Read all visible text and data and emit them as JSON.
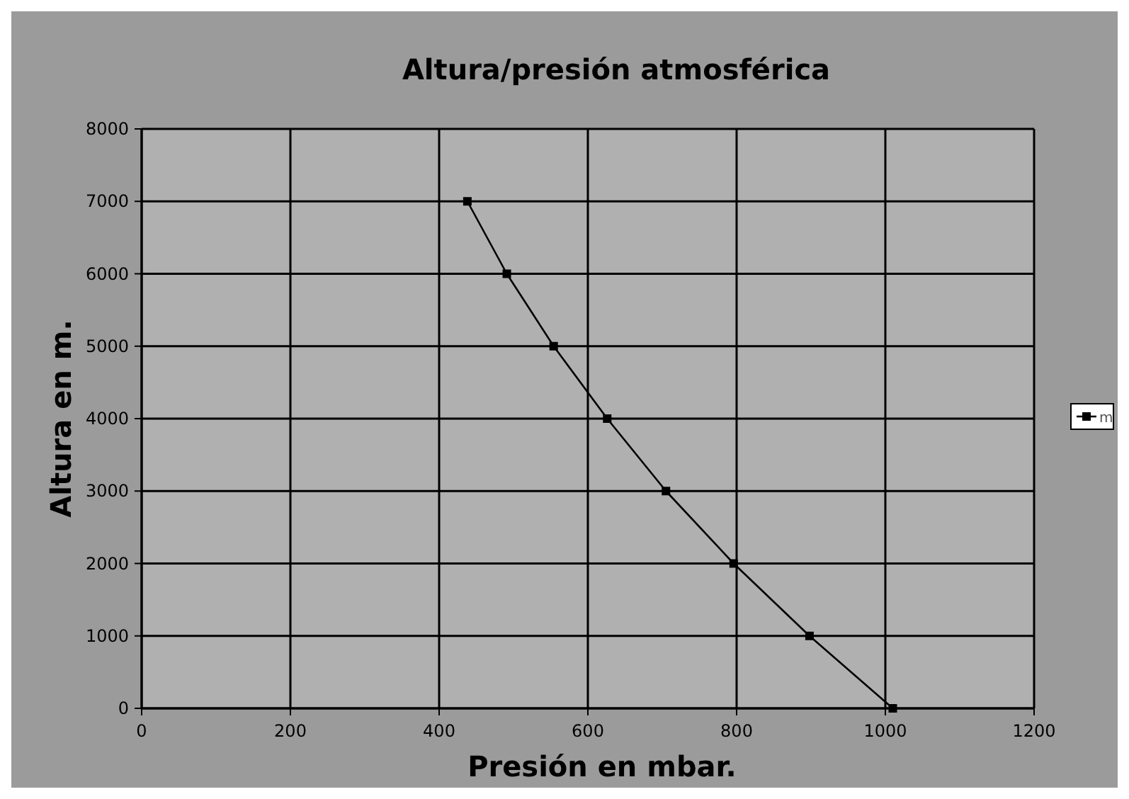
{
  "chart_data": {
    "type": "line",
    "title": "Altura/presión atmosférica",
    "xlabel": "Presión en mbar.",
    "ylabel": "Altura en m.",
    "series": [
      {
        "name": "m",
        "color": "#000000",
        "x": [
          1010,
          898,
          796,
          705,
          626,
          554,
          491,
          438
        ],
        "values": [
          0,
          1000,
          2000,
          3000,
          4000,
          5000,
          6000,
          7000
        ]
      }
    ],
    "xlim": [
      0,
      1200
    ],
    "xticks": [
      0,
      200,
      400,
      600,
      800,
      1000,
      1200
    ],
    "ylim": [
      0,
      8000
    ],
    "yticks": [
      0,
      1000,
      2000,
      3000,
      4000,
      5000,
      6000,
      7000,
      8000
    ],
    "grid": true,
    "legend": "right",
    "marker": "square",
    "line_style": "solid"
  }
}
